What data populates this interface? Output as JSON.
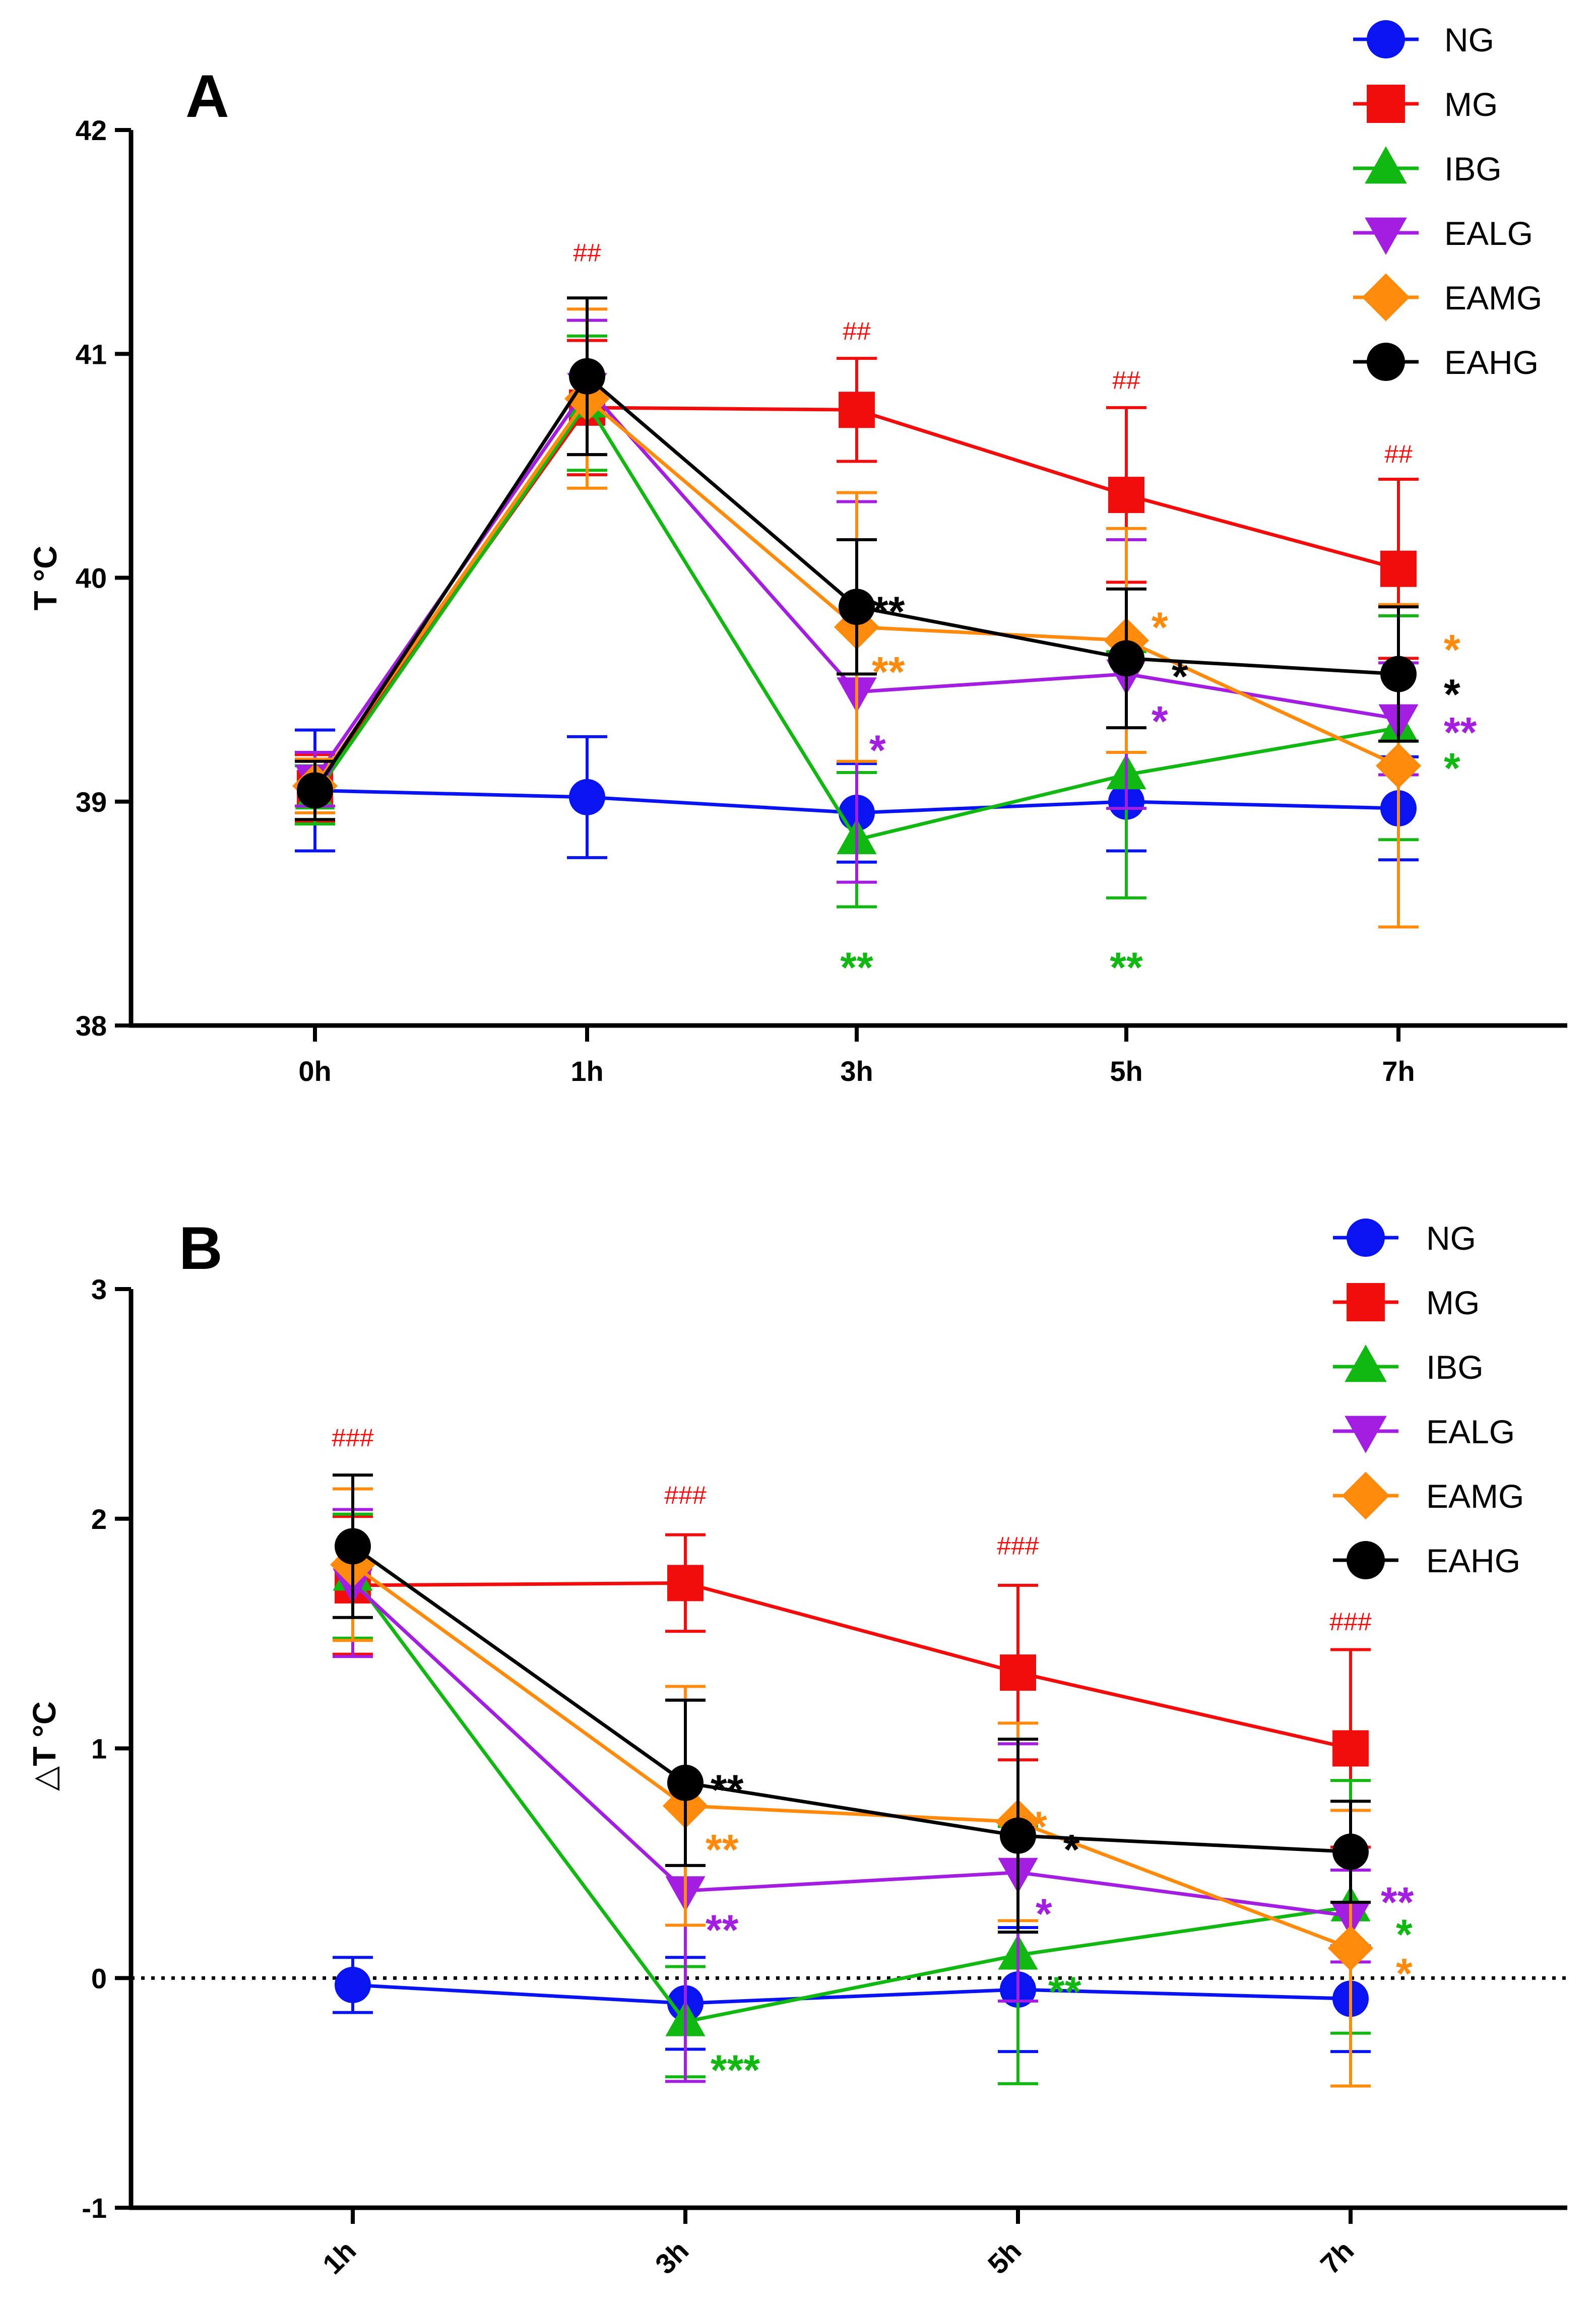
{
  "colors": {
    "NG": "#0a14f0",
    "MG": "#f20d0d",
    "IBG": "#12b812",
    "EALG": "#a31ee0",
    "EAMG": "#ff8a0c",
    "EAHG": "#000000"
  },
  "chart_data": [
    {
      "type": "line",
      "panel": "A",
      "ylabel": "T °C",
      "categories": [
        "0h",
        "1h",
        "3h",
        "5h",
        "7h"
      ],
      "ylim": [
        38,
        42
      ],
      "yticks": [
        38,
        39,
        40,
        41,
        42
      ],
      "grid": false,
      "legend_position": "top-right",
      "series": [
        {
          "name": "NG",
          "marker": "circle",
          "values": [
            39.05,
            39.02,
            38.95,
            39.0,
            38.97
          ],
          "errors": [
            0.27,
            0.27,
            0.22,
            0.22,
            0.23
          ]
        },
        {
          "name": "MG",
          "marker": "square",
          "values": [
            39.06,
            40.76,
            40.75,
            40.37,
            40.04
          ],
          "errors": [
            0.15,
            0.3,
            0.23,
            0.39,
            0.4
          ]
        },
        {
          "name": "IBG",
          "marker": "triangle-up",
          "values": [
            39.03,
            40.78,
            38.83,
            39.12,
            39.33
          ],
          "errors": [
            0.13,
            0.3,
            0.3,
            0.55,
            0.5
          ]
        },
        {
          "name": "EALG",
          "marker": "triangle-down",
          "values": [
            39.1,
            40.85,
            39.49,
            39.57,
            39.37
          ],
          "errors": [
            0.12,
            0.3,
            0.85,
            0.6,
            0.25
          ]
        },
        {
          "name": "EAMG",
          "marker": "diamond",
          "values": [
            39.07,
            40.8,
            39.78,
            39.72,
            39.16
          ],
          "errors": [
            0.12,
            0.4,
            0.6,
            0.5,
            0.72
          ]
        },
        {
          "name": "EAHG",
          "marker": "circle",
          "values": [
            39.05,
            40.9,
            39.87,
            39.64,
            39.57
          ],
          "errors": [
            0.13,
            0.35,
            0.3,
            0.31,
            0.3
          ]
        }
      ],
      "annotations": [
        {
          "text": "##",
          "group": "MG",
          "category": "1h",
          "y": 41.45,
          "dx": 0,
          "anchor": "middle"
        },
        {
          "text": "##",
          "group": "MG",
          "category": "3h",
          "y": 41.1,
          "dx": 0,
          "anchor": "middle"
        },
        {
          "text": "##",
          "group": "MG",
          "category": "5h",
          "y": 40.88,
          "dx": 0,
          "anchor": "middle"
        },
        {
          "text": "##",
          "group": "MG",
          "category": "7h",
          "y": 40.55,
          "dx": 0,
          "anchor": "middle"
        },
        {
          "text": "**",
          "group": "EAHG",
          "category": "3h",
          "y": 39.87,
          "dx": 30,
          "anchor": "start"
        },
        {
          "text": "**",
          "group": "EAMG",
          "category": "3h",
          "y": 39.6,
          "dx": 30,
          "anchor": "start"
        },
        {
          "text": "*",
          "group": "EALG",
          "category": "3h",
          "y": 39.25,
          "dx": 25,
          "anchor": "start"
        },
        {
          "text": "**",
          "group": "IBG",
          "category": "3h",
          "y": 38.28,
          "dx": 0,
          "anchor": "middle"
        },
        {
          "text": "*",
          "group": "EAMG",
          "category": "5h",
          "y": 39.8,
          "dx": 50,
          "anchor": "start"
        },
        {
          "text": "*",
          "group": "EAHG",
          "category": "5h",
          "y": 39.58,
          "dx": 90,
          "anchor": "start"
        },
        {
          "text": "*",
          "group": "EALG",
          "category": "5h",
          "y": 39.38,
          "dx": 50,
          "anchor": "start"
        },
        {
          "text": "**",
          "group": "IBG",
          "category": "5h",
          "y": 38.28,
          "dx": 0,
          "anchor": "middle"
        },
        {
          "text": "*",
          "group": "EAMG",
          "category": "7h",
          "y": 39.7,
          "dx": 90,
          "anchor": "start"
        },
        {
          "text": "*",
          "group": "EAHG",
          "category": "7h",
          "y": 39.5,
          "dx": 90,
          "anchor": "start"
        },
        {
          "text": "**",
          "group": "EALG",
          "category": "7h",
          "y": 39.33,
          "dx": 90,
          "anchor": "start"
        },
        {
          "text": "*",
          "group": "IBG",
          "category": "7h",
          "y": 39.17,
          "dx": 90,
          "anchor": "start"
        }
      ]
    },
    {
      "type": "line",
      "panel": "B",
      "ylabel": "△T  °C",
      "categories": [
        "1h",
        "3h",
        "5h",
        "7h"
      ],
      "ylim": [
        -1,
        3
      ],
      "yticks": [
        -1,
        0,
        1,
        2,
        3
      ],
      "grid": false,
      "reference_line": 0,
      "legend_position": "top-right",
      "series": [
        {
          "name": "NG",
          "marker": "circle",
          "values": [
            -0.03,
            -0.11,
            -0.05,
            -0.09
          ],
          "errors": [
            0.12,
            0.2,
            0.27,
            0.23
          ]
        },
        {
          "name": "MG",
          "marker": "square",
          "values": [
            1.71,
            1.72,
            1.33,
            1.0
          ],
          "errors": [
            0.3,
            0.21,
            0.38,
            0.43
          ]
        },
        {
          "name": "IBG",
          "marker": "triangle-up",
          "values": [
            1.75,
            -0.19,
            0.1,
            0.31
          ],
          "errors": [
            0.27,
            0.24,
            0.56,
            0.55
          ]
        },
        {
          "name": "EALG",
          "marker": "triangle-down",
          "values": [
            1.72,
            0.38,
            0.46,
            0.27
          ],
          "errors": [
            0.32,
            0.83,
            0.56,
            0.2
          ]
        },
        {
          "name": "EAMG",
          "marker": "diamond",
          "values": [
            1.8,
            0.75,
            0.68,
            0.13
          ],
          "errors": [
            0.33,
            0.52,
            0.43,
            0.6
          ]
        },
        {
          "name": "EAHG",
          "marker": "circle",
          "values": [
            1.88,
            0.85,
            0.62,
            0.55
          ],
          "errors": [
            0.31,
            0.36,
            0.42,
            0.22
          ]
        }
      ],
      "annotations": [
        {
          "text": "###",
          "group": "MG",
          "category": "1h",
          "y": 2.35,
          "dx": 0,
          "anchor": "middle"
        },
        {
          "text": "###",
          "group": "MG",
          "category": "3h",
          "y": 2.1,
          "dx": 0,
          "anchor": "middle"
        },
        {
          "text": "###",
          "group": "MG",
          "category": "5h",
          "y": 1.88,
          "dx": 0,
          "anchor": "middle"
        },
        {
          "text": "###",
          "group": "MG",
          "category": "7h",
          "y": 1.55,
          "dx": 0,
          "anchor": "middle"
        },
        {
          "text": "**",
          "group": "EAHG",
          "category": "3h",
          "y": 0.84,
          "dx": 50,
          "anchor": "start"
        },
        {
          "text": "**",
          "group": "EAMG",
          "category": "3h",
          "y": 0.58,
          "dx": 40,
          "anchor": "start"
        },
        {
          "text": "**",
          "group": "EALG",
          "category": "3h",
          "y": 0.23,
          "dx": 40,
          "anchor": "start"
        },
        {
          "text": "***",
          "group": "IBG",
          "category": "3h",
          "y": -0.38,
          "dx": 50,
          "anchor": "start"
        },
        {
          "text": "*",
          "group": "EAMG",
          "category": "5h",
          "y": 0.68,
          "dx": 25,
          "anchor": "start"
        },
        {
          "text": "*",
          "group": "EAHG",
          "category": "5h",
          "y": 0.58,
          "dx": 90,
          "anchor": "start"
        },
        {
          "text": "*",
          "group": "EALG",
          "category": "5h",
          "y": 0.3,
          "dx": 35,
          "anchor": "start"
        },
        {
          "text": "**",
          "group": "IBG",
          "category": "5h",
          "y": -0.04,
          "dx": 60,
          "anchor": "start"
        },
        {
          "text": "**",
          "group": "EALG",
          "category": "7h",
          "y": 0.35,
          "dx": 60,
          "anchor": "start"
        },
        {
          "text": "*",
          "group": "IBG",
          "category": "7h",
          "y": 0.21,
          "dx": 90,
          "anchor": "start"
        },
        {
          "text": "*",
          "group": "EAMG",
          "category": "7h",
          "y": 0.04,
          "dx": 90,
          "anchor": "start"
        }
      ]
    }
  ]
}
